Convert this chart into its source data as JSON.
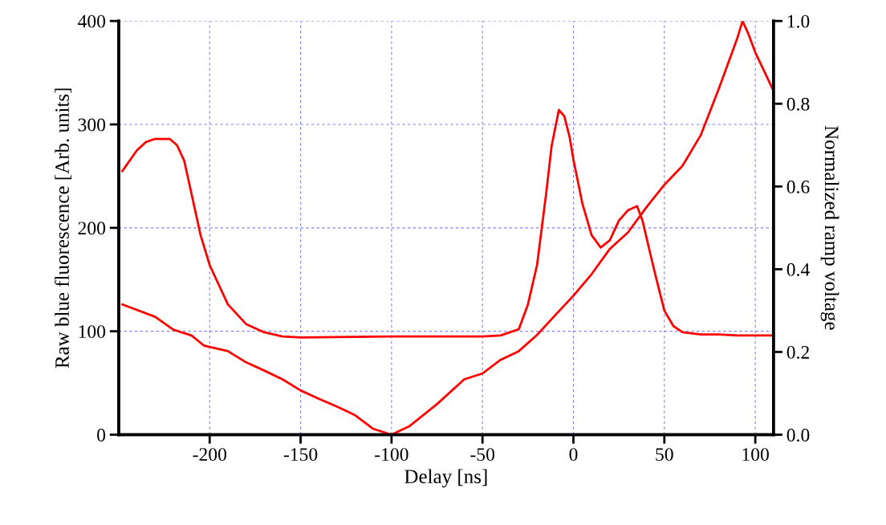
{
  "chart_data": {
    "type": "line",
    "xlabel": "Delay [ns]",
    "ylabel": "Raw blue fluorescence [Arb. units]",
    "y2label": "Normalized ramp voltage",
    "xlim": [
      -250,
      110
    ],
    "xticks": [
      -200,
      -150,
      -100,
      -50,
      0,
      50,
      100
    ],
    "ylim": [
      0,
      400
    ],
    "yticks": [
      0,
      100,
      200,
      300,
      400
    ],
    "y2lim": [
      0.0,
      1.0
    ],
    "y2ticks": [
      {
        "value": 0,
        "label": "0.0"
      },
      0.2,
      0.4,
      0.6,
      0.8,
      {
        "value": 1,
        "label": "1.0"
      }
    ],
    "grid": true,
    "legend": false,
    "marker": "none",
    "line_style": "solid",
    "series": [
      {
        "color": "#ff0000",
        "x": [
          -248,
          -240,
          -235,
          -230,
          -222,
          -218,
          -214,
          -210,
          -205,
          -200,
          -190,
          -180,
          -170,
          -160,
          -150,
          -100,
          -50,
          -40,
          -30,
          -25,
          -20,
          -15,
          -12,
          -8,
          -5,
          -2,
          0,
          5,
          10,
          15,
          20,
          25,
          30,
          35,
          38,
          42,
          45,
          50,
          55,
          60,
          70,
          80,
          90,
          100,
          110
        ],
        "values": [
          255,
          275,
          283,
          286,
          286,
          280,
          265,
          233,
          193,
          164,
          126,
          107,
          99,
          95,
          94,
          95,
          95,
          96,
          102,
          126,
          164,
          233,
          279,
          314,
          308,
          287,
          266,
          223,
          193,
          181,
          188,
          207,
          217,
          221,
          207,
          177,
          155,
          120,
          105,
          99,
          97,
          97,
          96,
          96,
          96
        ]
      },
      {
        "color": "#ff0000",
        "axis": "y2",
        "x": [
          -248,
          -230,
          -220,
          -210,
          -203,
          -190,
          -180,
          -170,
          -160,
          -150,
          -140,
          -130,
          -120,
          -110,
          -100,
          -90,
          -75,
          -60,
          -50,
          -40,
          -30,
          -20,
          -10,
          0,
          10,
          20,
          30,
          40,
          50,
          60,
          70,
          80,
          90,
          93,
          96,
          100,
          105,
          110
        ],
        "values": [
          0.315,
          0.285,
          0.254,
          0.24,
          0.215,
          0.202,
          0.175,
          0.155,
          0.134,
          0.107,
          0.087,
          0.068,
          0.047,
          0.014,
          0.0,
          0.021,
          0.074,
          0.134,
          0.148,
          0.181,
          0.202,
          0.241,
          0.289,
          0.336,
          0.388,
          0.449,
          0.489,
          0.549,
          0.604,
          0.65,
          0.724,
          0.837,
          0.957,
          1.0,
          0.971,
          0.924,
          0.878,
          0.831
        ]
      }
    ]
  }
}
